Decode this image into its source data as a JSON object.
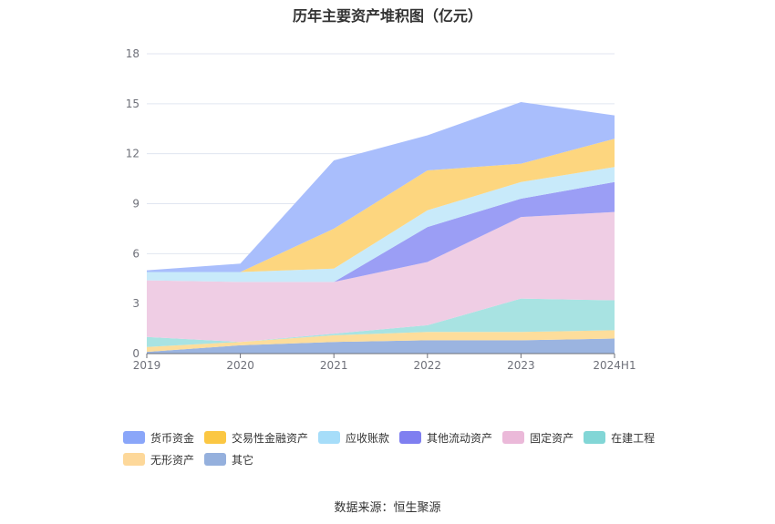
{
  "chart_data": {
    "type": "area",
    "stacked": true,
    "title": "历年主要资产堆积图（亿元）",
    "categories": [
      "2019",
      "2020",
      "2021",
      "2022",
      "2023",
      "2024H1"
    ],
    "y_ticks": [
      "0",
      "3",
      "6",
      "9",
      "12",
      "15",
      "18"
    ],
    "ylim": [
      0,
      18
    ],
    "grid": true,
    "legend_position": "bottom",
    "series": [
      {
        "name": "其它",
        "color": "#9bb4e0",
        "values": [
          0.1,
          0.5,
          0.7,
          0.8,
          0.8,
          0.9
        ]
      },
      {
        "name": "无形资产",
        "color": "#fddd9b",
        "values": [
          0.3,
          0.2,
          0.4,
          0.5,
          0.5,
          0.5
        ]
      },
      {
        "name": "在建工程",
        "color": "#a8e3e2",
        "values": [
          0.6,
          0.0,
          0.1,
          0.4,
          2.0,
          1.8
        ]
      },
      {
        "name": "固定资产",
        "color": "#efcde4",
        "values": [
          3.4,
          3.6,
          3.1,
          3.8,
          4.9,
          5.3
        ]
      },
      {
        "name": "其他流动资产",
        "color": "#9b9ef5",
        "values": [
          0.0,
          0.0,
          0.0,
          2.1,
          1.1,
          1.8
        ]
      },
      {
        "name": "应收账款",
        "color": "#c8eafa",
        "values": [
          0.5,
          0.6,
          0.8,
          1.0,
          1.0,
          0.9
        ]
      },
      {
        "name": "交易性金融资产",
        "color": "#fdd67f",
        "values": [
          0.0,
          0.0,
          2.4,
          2.4,
          1.1,
          1.7
        ]
      },
      {
        "name": "货币资金",
        "color": "#a9befc",
        "values": [
          0.1,
          0.5,
          4.1,
          2.1,
          3.7,
          1.4
        ]
      }
    ],
    "legend": [
      {
        "name": "货币资金",
        "color": "#8aa6f9"
      },
      {
        "name": "交易性金融资产",
        "color": "#fbc743"
      },
      {
        "name": "应收账款",
        "color": "#a6ddf9"
      },
      {
        "name": "其他流动资产",
        "color": "#7f7ff0"
      },
      {
        "name": "固定资产",
        "color": "#ebb9d9"
      },
      {
        "name": "在建工程",
        "color": "#82d6d6"
      },
      {
        "name": "无形资产",
        "color": "#fdd89a"
      },
      {
        "name": "其它",
        "color": "#95b0dd"
      }
    ]
  },
  "source": "数据来源：恒生聚源"
}
